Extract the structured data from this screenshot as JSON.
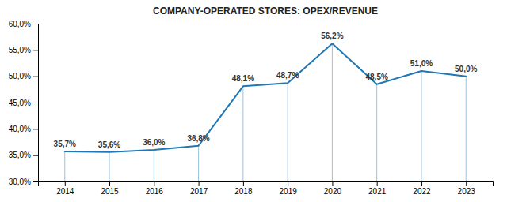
{
  "chart_data": {
    "type": "line",
    "title": "COMPANY-OPERATED STORES: OPEX/REVENUE",
    "x": [
      2014,
      2015,
      2016,
      2017,
      2018,
      2019,
      2020,
      2021,
      2022,
      2023
    ],
    "values": [
      35.7,
      35.6,
      36.0,
      36.8,
      48.1,
      48.7,
      56.2,
      48.5,
      51.0,
      50.0
    ],
    "value_labels": [
      "35,7%",
      "35,6%",
      "36,0%",
      "36,8%",
      "48,1%",
      "48,7%",
      "56,2%",
      "48,5%",
      "51,0%",
      "50,0%"
    ],
    "data_labels": true,
    "xlim": [
      2013.4,
      2023.6
    ],
    "xticks": [
      2014,
      2015,
      2016,
      2017,
      2018,
      2019,
      2020,
      2021,
      2022,
      2023
    ],
    "ylim": [
      30.0,
      60.0
    ],
    "yticks": [
      {
        "value": 30.0,
        "label": "30,0%"
      },
      {
        "value": 35.0,
        "label": "35,0%"
      },
      {
        "value": 40.0,
        "label": "40,0%"
      },
      {
        "value": 45.0,
        "label": "45,0%"
      },
      {
        "value": 50.0,
        "label": "50,0%"
      },
      {
        "value": 55.0,
        "label": "55,0%"
      },
      {
        "value": 60.0,
        "label": "60,0%"
      }
    ],
    "grid": false
  }
}
